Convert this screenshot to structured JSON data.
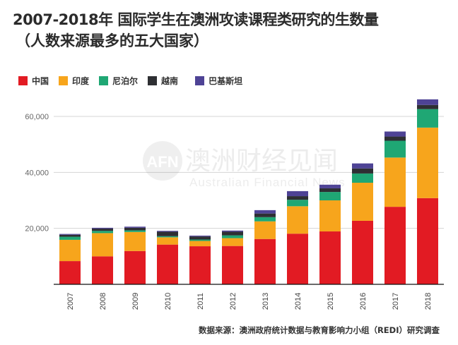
{
  "title": "2007-2018年 国际学生在澳洲攻读课程类研究的生数量",
  "subtitle": "（人数来源最多的五大国家）",
  "source": "数据来源：澳洲政府统计数据与教育影响力小组（REDI）研究调查",
  "watermark": {
    "logo_text": "AFN",
    "cn_text": "澳洲财经见闻",
    "en_text": "Australian Financial News"
  },
  "chart_data": {
    "type": "bar",
    "stacked": true,
    "title": "2007-2018年 国际学生在澳洲攻读课程类研究的生数量（人数来源最多的五大国家）",
    "xlabel": "",
    "ylabel": "",
    "ylim": [
      0,
      70000
    ],
    "yticks": [
      20000,
      40000,
      60000
    ],
    "ytick_labels": [
      "20,000",
      "40,000",
      "60,000"
    ],
    "grid": true,
    "legend_position": "top-left",
    "categories": [
      "2007",
      "2008",
      "2009",
      "2010",
      "2011",
      "2012",
      "2013",
      "2014",
      "2015",
      "2016",
      "2017",
      "2018"
    ],
    "series": [
      {
        "name": "中国",
        "color": "#e21b23",
        "values": [
          8300,
          10000,
          11900,
          14200,
          13600,
          13700,
          16200,
          18100,
          18900,
          22700,
          27700,
          30800
        ]
      },
      {
        "name": "印度",
        "color": "#f7a51c",
        "values": [
          7600,
          8300,
          6800,
          2600,
          1900,
          2800,
          6300,
          9800,
          11100,
          13600,
          17600,
          25200
        ]
      },
      {
        "name": "尼泊尔",
        "color": "#1fa774",
        "values": [
          1100,
          800,
          600,
          400,
          500,
          1000,
          1500,
          2300,
          3000,
          3300,
          6000,
          6600
        ]
      },
      {
        "name": "越南",
        "color": "#2e2f33",
        "values": [
          700,
          800,
          900,
          1600,
          1100,
          1300,
          1300,
          1300,
          1300,
          1800,
          1500,
          1500
        ]
      },
      {
        "name": "巴基斯坦",
        "color": "#4e4395",
        "values": [
          300,
          300,
          400,
          300,
          300,
          400,
          1200,
          1800,
          1300,
          1800,
          1800,
          2000
        ]
      }
    ]
  }
}
